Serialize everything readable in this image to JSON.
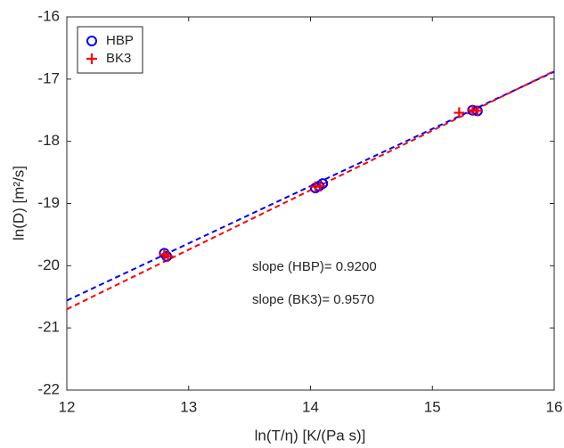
{
  "chart_data": {
    "type": "scatter",
    "xlabel": "ln(T/η) [K/(Pa s)]",
    "ylabel": "ln(D) [m²/s]",
    "xlim": [
      12,
      16
    ],
    "xticks": [
      12,
      13,
      14,
      15,
      16
    ],
    "ylim": [
      -22,
      -16
    ],
    "yticks": [
      -22,
      -21,
      -20,
      -19,
      -18,
      -17,
      -16
    ],
    "legend": "upper-left",
    "series": [
      {
        "name": "HBP",
        "color": "#0000ff",
        "marker": "circle",
        "x": [
          12.8,
          12.82,
          14.04,
          14.07,
          14.1,
          15.33,
          15.37
        ],
        "values": [
          -19.8,
          -19.85,
          -18.75,
          -18.72,
          -18.68,
          -17.5,
          -17.51
        ]
      },
      {
        "name": "BK3",
        "color": "#ff0000",
        "marker": "plus",
        "x": [
          12.8,
          12.83,
          14.04,
          14.08,
          15.22,
          15.33,
          15.37
        ],
        "values": [
          -19.82,
          -19.85,
          -18.73,
          -18.72,
          -17.54,
          -17.5,
          -17.51
        ]
      }
    ],
    "fits": [
      {
        "color": "#0000ff",
        "x": [
          12,
          16
        ],
        "values": [
          -20.56,
          -16.88
        ]
      },
      {
        "color": "#ff0000",
        "x": [
          12,
          16
        ],
        "values": [
          -20.7,
          -16.87
        ]
      }
    ],
    "annotations": [
      "slope (HBP)= 0.9200",
      "slope (BK3)= 0.9570"
    ]
  }
}
